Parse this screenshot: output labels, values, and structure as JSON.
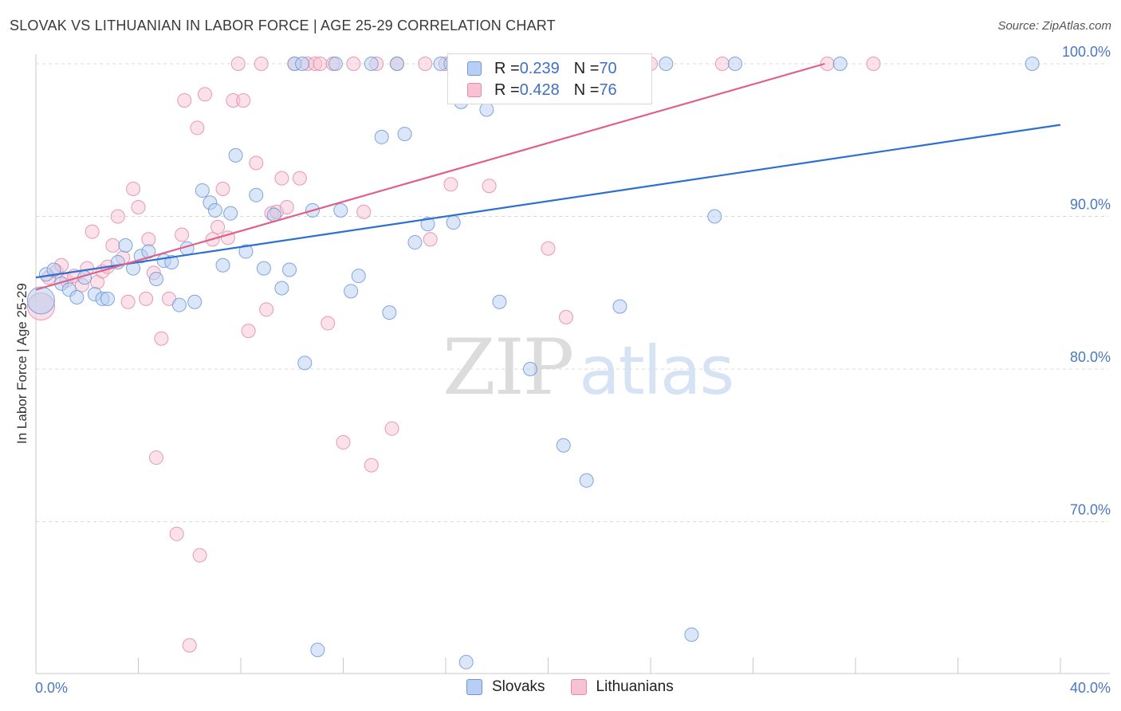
{
  "header": {
    "title": "SLOVAK VS LITHUANIAN IN LABOR FORCE | AGE 25-29 CORRELATION CHART",
    "source": "Source: ZipAtlas.com"
  },
  "watermark": {
    "zip": "ZIP",
    "atlas": "atlas"
  },
  "legend": {
    "rows": [
      {
        "r_label": "R = ",
        "r_value": "0.239",
        "n_label": "N = ",
        "n_value": "70"
      },
      {
        "r_label": "R = ",
        "r_value": "0.428",
        "n_label": "N = ",
        "n_value": "76"
      }
    ]
  },
  "colors": {
    "slovak_fill": "#b7cff2",
    "slovak_stroke": "#6b97d8",
    "slovak_line": "#2f6fd1",
    "lith_fill": "#f7c3d3",
    "lith_stroke": "#e48aa8",
    "lith_line": "#e0608c",
    "grid": "#d8d8d8",
    "tick_text": "#4a78c4"
  },
  "chart_data": {
    "type": "scatter",
    "title": "SLOVAK VS LITHUANIAN IN LABOR FORCE | AGE 25-29 CORRELATION CHART",
    "xlabel": "",
    "ylabel": "In Labor Force | Age 25-29",
    "xlim": [
      0,
      40
    ],
    "ylim": [
      60.5,
      103
    ],
    "x_tick_labels": [
      "0.0%",
      "40.0%"
    ],
    "y_ticks": [
      70,
      80,
      90,
      100
    ],
    "y_tick_labels": [
      "70.0%",
      "80.0%",
      "90.0%",
      "100.0%"
    ],
    "grid": true,
    "legend_position": "top-center",
    "series": [
      {
        "name": "Slovaks",
        "r": 0.239,
        "n": 70,
        "trend": [
          [
            0,
            86.0
          ],
          [
            40,
            96.0
          ]
        ],
        "points": [
          [
            0.2,
            84.5
          ],
          [
            0.4,
            86.2
          ],
          [
            0.7,
            86.5
          ],
          [
            1.0,
            85.6
          ],
          [
            1.3,
            85.2
          ],
          [
            1.6,
            84.7
          ],
          [
            1.9,
            86.0
          ],
          [
            2.3,
            84.9
          ],
          [
            2.6,
            84.6
          ],
          [
            2.8,
            84.6
          ],
          [
            3.2,
            87.0
          ],
          [
            3.5,
            88.1
          ],
          [
            3.8,
            86.6
          ],
          [
            4.1,
            87.4
          ],
          [
            4.4,
            87.7
          ],
          [
            4.7,
            85.9
          ],
          [
            5.0,
            87.1
          ],
          [
            5.3,
            87.0
          ],
          [
            5.6,
            84.2
          ],
          [
            5.9,
            87.9
          ],
          [
            6.2,
            84.4
          ],
          [
            6.5,
            91.7
          ],
          [
            6.8,
            90.9
          ],
          [
            7.0,
            90.4
          ],
          [
            7.3,
            86.8
          ],
          [
            7.6,
            90.2
          ],
          [
            7.8,
            94.0
          ],
          [
            8.2,
            87.7
          ],
          [
            8.6,
            91.4
          ],
          [
            8.9,
            86.6
          ],
          [
            9.3,
            90.1
          ],
          [
            9.6,
            85.3
          ],
          [
            9.9,
            86.5
          ],
          [
            10.1,
            100.0
          ],
          [
            10.4,
            100.0
          ],
          [
            10.5,
            80.4
          ],
          [
            10.8,
            90.4
          ],
          [
            11.0,
            61.6
          ],
          [
            11.7,
            100.0
          ],
          [
            11.9,
            90.4
          ],
          [
            12.3,
            85.1
          ],
          [
            12.6,
            86.1
          ],
          [
            13.1,
            100.0
          ],
          [
            13.5,
            95.2
          ],
          [
            13.8,
            83.7
          ],
          [
            14.1,
            100.0
          ],
          [
            14.4,
            95.4
          ],
          [
            14.8,
            88.3
          ],
          [
            15.3,
            89.5
          ],
          [
            15.8,
            100.0
          ],
          [
            16.2,
            100.0
          ],
          [
            16.3,
            89.6
          ],
          [
            16.6,
            97.5
          ],
          [
            16.8,
            60.8
          ],
          [
            17.3,
            100.0
          ],
          [
            17.6,
            97.0
          ],
          [
            18.1,
            84.4
          ],
          [
            19.3,
            80.0
          ],
          [
            20.6,
            75.0
          ],
          [
            21.5,
            72.7
          ],
          [
            21.7,
            100.0
          ],
          [
            22.8,
            84.1
          ],
          [
            23.6,
            100.0
          ],
          [
            24.6,
            100.0
          ],
          [
            25.6,
            62.6
          ],
          [
            26.5,
            90.0
          ],
          [
            27.3,
            100.0
          ],
          [
            31.4,
            100.0
          ],
          [
            38.9,
            100.0
          ],
          [
            22.2,
            100.0
          ]
        ]
      },
      {
        "name": "Lithuanians",
        "r": 0.428,
        "n": 76,
        "trend": [
          [
            0,
            85.2
          ],
          [
            30.8,
            100.0
          ]
        ],
        "points": [
          [
            0.2,
            84.1
          ],
          [
            0.5,
            86.0
          ],
          [
            0.8,
            86.4
          ],
          [
            1.0,
            86.8
          ],
          [
            1.2,
            85.8
          ],
          [
            1.5,
            86.1
          ],
          [
            1.8,
            85.5
          ],
          [
            2.0,
            86.6
          ],
          [
            2.2,
            89.0
          ],
          [
            2.4,
            85.7
          ],
          [
            2.6,
            86.4
          ],
          [
            2.8,
            86.7
          ],
          [
            3.0,
            88.1
          ],
          [
            3.2,
            90.0
          ],
          [
            3.4,
            87.3
          ],
          [
            3.6,
            84.4
          ],
          [
            3.8,
            91.8
          ],
          [
            4.0,
            90.6
          ],
          [
            4.3,
            84.6
          ],
          [
            4.4,
            88.5
          ],
          [
            4.6,
            86.3
          ],
          [
            4.7,
            74.2
          ],
          [
            4.9,
            82.0
          ],
          [
            5.2,
            84.6
          ],
          [
            5.5,
            69.2
          ],
          [
            5.7,
            88.8
          ],
          [
            5.8,
            97.6
          ],
          [
            6.0,
            61.9
          ],
          [
            6.3,
            95.8
          ],
          [
            6.4,
            67.8
          ],
          [
            6.6,
            98.0
          ],
          [
            6.9,
            88.5
          ],
          [
            7.1,
            89.3
          ],
          [
            7.3,
            91.8
          ],
          [
            7.5,
            88.6
          ],
          [
            7.7,
            97.6
          ],
          [
            7.9,
            100.0
          ],
          [
            8.1,
            97.6
          ],
          [
            8.3,
            82.5
          ],
          [
            8.6,
            93.5
          ],
          [
            8.8,
            100.0
          ],
          [
            9.0,
            83.9
          ],
          [
            9.2,
            90.2
          ],
          [
            9.4,
            90.3
          ],
          [
            9.6,
            92.5
          ],
          [
            9.8,
            90.6
          ],
          [
            10.1,
            100.0
          ],
          [
            10.3,
            92.5
          ],
          [
            10.6,
            100.0
          ],
          [
            10.9,
            100.0
          ],
          [
            11.1,
            100.0
          ],
          [
            11.4,
            83.0
          ],
          [
            11.6,
            100.0
          ],
          [
            12.0,
            75.2
          ],
          [
            12.4,
            100.0
          ],
          [
            12.8,
            90.3
          ],
          [
            13.1,
            73.7
          ],
          [
            13.3,
            100.0
          ],
          [
            13.9,
            76.1
          ],
          [
            14.1,
            100.0
          ],
          [
            15.2,
            100.0
          ],
          [
            15.4,
            88.5
          ],
          [
            16.0,
            100.0
          ],
          [
            16.2,
            92.1
          ],
          [
            16.9,
            100.0
          ],
          [
            17.7,
            92.0
          ],
          [
            19.3,
            100.0
          ],
          [
            20.0,
            87.9
          ],
          [
            20.7,
            83.4
          ],
          [
            21.0,
            100.0
          ],
          [
            22.0,
            100.0
          ],
          [
            23.4,
            100.0
          ],
          [
            24.0,
            100.0
          ],
          [
            26.8,
            100.0
          ],
          [
            30.9,
            100.0
          ],
          [
            32.7,
            100.0
          ]
        ]
      }
    ]
  }
}
